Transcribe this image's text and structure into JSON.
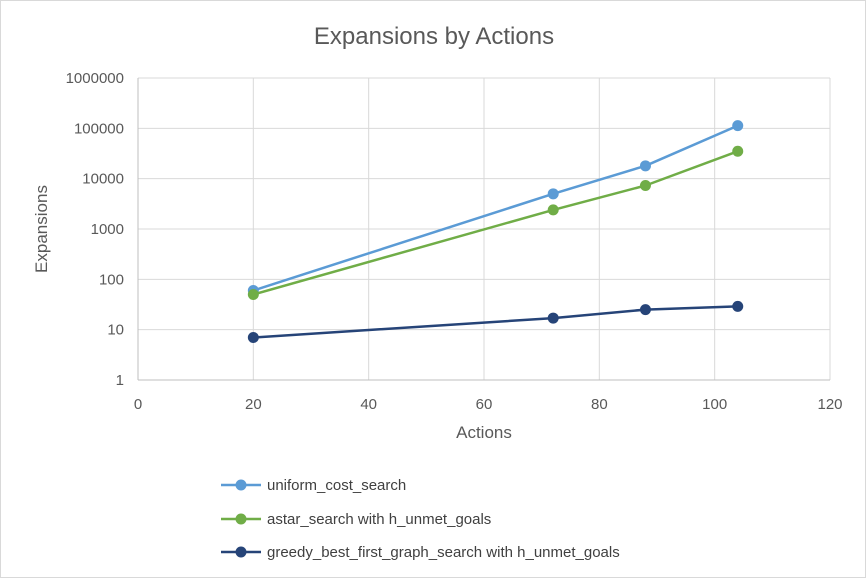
{
  "chart_data": {
    "type": "line",
    "title": "Expansions by Actions",
    "xlabel": "Actions",
    "ylabel": "Expansions",
    "xlim": [
      0,
      120
    ],
    "x_ticks": [
      0,
      20,
      40,
      60,
      80,
      100,
      120
    ],
    "y_scale": "log",
    "ylim": [
      1,
      1000000
    ],
    "y_ticks": [
      1,
      10,
      100,
      1000,
      10000,
      100000,
      1000000
    ],
    "y_tick_labels": [
      "1",
      "10",
      "100",
      "1000",
      "10000",
      "100000",
      "1000000"
    ],
    "grid": true,
    "legend_position": "bottom",
    "series": [
      {
        "name": "uniform_cost_search",
        "color": "#5b9bd5",
        "x": [
          20,
          72,
          88,
          104
        ],
        "y": [
          60,
          5000,
          18000,
          113000
        ]
      },
      {
        "name": "astar_search with h_unmet_goals",
        "color": "#70ad47",
        "x": [
          20,
          72,
          88,
          104
        ],
        "y": [
          50,
          2400,
          7300,
          35000
        ]
      },
      {
        "name": "greedy_best_first_graph_search with h_unmet_goals",
        "color": "#264478",
        "x": [
          20,
          72,
          88,
          104
        ],
        "y": [
          7,
          17,
          25,
          29
        ]
      }
    ]
  }
}
